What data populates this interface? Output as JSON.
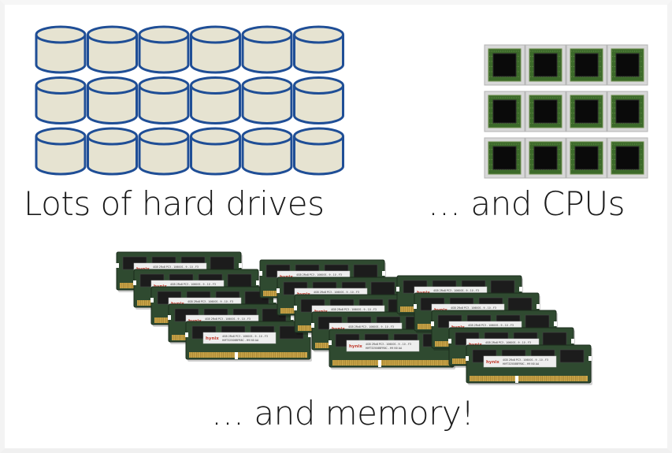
{
  "captions": {
    "drives": "Lots of hard drives",
    "cpus": "… and CPUs",
    "memory": "… and memory!"
  },
  "colors": {
    "drive_fill": "#e6e3d1",
    "drive_stroke": "#1f4e96",
    "cpu_tile": "#d8d8d8",
    "cpu_pins": "#3c6a2a",
    "cpu_die": "#0a0a0a",
    "ram_pcb": "#2f4a30",
    "ram_gold": "#c9a449",
    "ram_label": "#eeeeee",
    "ram_brand": "#c0392b"
  },
  "icons": {
    "drive": "hard-drive-cylinder-icon",
    "cpu": "cpu-chip-icon",
    "ram": "ram-module-icon"
  },
  "grids": {
    "drives": {
      "rows": 3,
      "cols": 6
    },
    "cpus": {
      "rows": 3,
      "cols": 4
    },
    "ram_stacks": 3,
    "ram_per_stack": 5
  },
  "ram_label_text": [
    "4GB 2Rx8 PC3 - 10600S - 9 - 10 - F3",
    "HMT325S6BFR8C - H9 N0 AA"
  ],
  "ram_brand_text": "hynix"
}
